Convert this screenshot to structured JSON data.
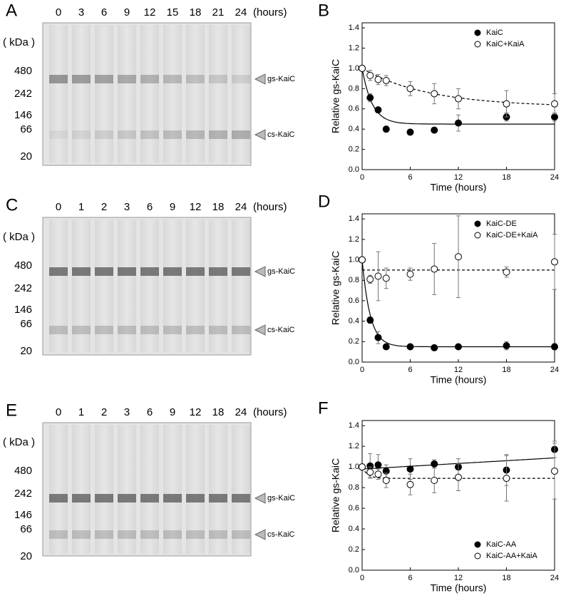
{
  "gels": [
    {
      "letter": "A",
      "lanes": [
        "0",
        "3",
        "6",
        "9",
        "12",
        "15",
        "18",
        "21",
        "24"
      ],
      "unit": "(hours)",
      "kda_label": "( kDa )",
      "markers": [
        "480",
        "242",
        "146",
        "66",
        "20"
      ],
      "band_labels": [
        "gs-KaiC",
        "cs-KaiC"
      ]
    },
    {
      "letter": "C",
      "lanes": [
        "0",
        "1",
        "2",
        "3",
        "6",
        "9",
        "12",
        "18",
        "24"
      ],
      "unit": "(hours)",
      "kda_label": "( kDa )",
      "markers": [
        "480",
        "242",
        "146",
        "66",
        "20"
      ],
      "band_labels": [
        "gs-KaiC",
        "cs-KaiC"
      ]
    },
    {
      "letter": "E",
      "lanes": [
        "0",
        "1",
        "2",
        "3",
        "6",
        "9",
        "12",
        "18",
        "24"
      ],
      "unit": "(hours)",
      "kda_label": "( kDa )",
      "markers": [
        "480",
        "242",
        "146",
        "66",
        "20"
      ],
      "band_labels": [
        "gs-KaiC",
        "cs-KaiC"
      ]
    }
  ],
  "chart_data": [
    {
      "type": "scatter",
      "letter": "B",
      "xlabel": "Time (hours)",
      "ylabel": "Relative gs-KaiC",
      "legend": "upper right",
      "xlim": [
        0,
        24
      ],
      "xticks": [
        0,
        6,
        12,
        18,
        24
      ],
      "ylim": [
        0,
        1.45
      ],
      "yticks": [
        {
          "value": 0,
          "label": "0.0"
        },
        {
          "value": 0.2,
          "label": "0.2"
        },
        {
          "value": 0.4,
          "label": "0.4"
        },
        {
          "value": 0.6,
          "label": "0.6"
        },
        {
          "value": 0.8,
          "label": "0.8"
        },
        {
          "value": 1.0,
          "label": "1.0"
        },
        {
          "value": 1.2,
          "label": "1.2"
        },
        {
          "value": 1.4,
          "label": "1.4"
        }
      ],
      "x": [
        0,
        1,
        2,
        3,
        6,
        9,
        12,
        18,
        24
      ],
      "series": [
        {
          "name": "KaiC",
          "color": "#000000",
          "values": [
            1.0,
            0.71,
            0.59,
            0.4,
            0.37,
            0.39,
            0.46,
            0.52,
            0.52
          ],
          "errors": [
            0,
            0.04,
            0.02,
            0.02,
            0.02,
            0.02,
            0.08,
            0.04,
            0.04
          ],
          "fit": {
            "start": 1.0,
            "plateau": 0.45,
            "rate": 0.8
          },
          "dash": false
        },
        {
          "name": "KaiC+KaiA",
          "color": "#ffffff",
          "values": [
            1.0,
            0.93,
            0.89,
            0.88,
            0.8,
            0.75,
            0.7,
            0.65,
            0.65
          ],
          "errors": [
            0,
            0.05,
            0.05,
            0.05,
            0.07,
            0.1,
            0.1,
            0.13,
            0.1
          ],
          "fit": {
            "start": 1.0,
            "plateau": 0.62,
            "rate": 0.12
          },
          "dash": true
        }
      ]
    },
    {
      "type": "scatter",
      "letter": "D",
      "xlabel": "Time (hours)",
      "ylabel": "Relative gs-KaiC",
      "legend": "upper right",
      "xlim": [
        0,
        24
      ],
      "xticks": [
        0,
        6,
        12,
        18,
        24
      ],
      "ylim": [
        0,
        1.45
      ],
      "yticks": [
        {
          "value": 0,
          "label": "0.0"
        },
        {
          "value": 0.2,
          "label": "0.2"
        },
        {
          "value": 0.4,
          "label": "0.4"
        },
        {
          "value": 0.6,
          "label": "0.6"
        },
        {
          "value": 0.8,
          "label": "0.8"
        },
        {
          "value": 1.0,
          "label": "1.0"
        },
        {
          "value": 1.2,
          "label": "1.2"
        },
        {
          "value": 1.4,
          "label": "1.4"
        }
      ],
      "x": [
        0,
        1,
        2,
        3,
        6,
        9,
        12,
        18,
        24
      ],
      "series": [
        {
          "name": "KaiC-DE",
          "color": "#000000",
          "values": [
            1.0,
            0.41,
            0.24,
            0.15,
            0.15,
            0.14,
            0.15,
            0.16,
            0.15
          ],
          "errors": [
            0,
            0.03,
            0.06,
            0.02,
            0.02,
            0.02,
            0.02,
            0.04,
            0.03
          ],
          "fit": {
            "start": 1.0,
            "plateau": 0.15,
            "rate": 1.0
          },
          "dash": false
        },
        {
          "name": "KaiC-DE+KaiA",
          "color": "#ffffff",
          "values": [
            1.0,
            0.81,
            0.84,
            0.82,
            0.86,
            0.91,
            1.03,
            0.88,
            0.98
          ],
          "errors": [
            0,
            0.04,
            0.24,
            0.1,
            0.06,
            0.25,
            0.4,
            0.05,
            0.27
          ],
          "fit": {
            "start": 0.9,
            "plateau": 0.9,
            "rate": 0
          },
          "dash": true
        }
      ]
    },
    {
      "type": "scatter",
      "letter": "F",
      "xlabel": "Time (hours)",
      "ylabel": "Relative gs-KaiC",
      "legend": "lower right",
      "xlim": [
        0,
        24
      ],
      "xticks": [
        0,
        6,
        12,
        18,
        24
      ],
      "ylim": [
        0,
        1.45
      ],
      "yticks": [
        {
          "value": 0,
          "label": "0.0"
        },
        {
          "value": 0.2,
          "label": "0.2"
        },
        {
          "value": 0.4,
          "label": "0.4"
        },
        {
          "value": 0.6,
          "label": "0.6"
        },
        {
          "value": 0.8,
          "label": "0.8"
        },
        {
          "value": 1.0,
          "label": "1.0"
        },
        {
          "value": 1.2,
          "label": "1.2"
        },
        {
          "value": 1.4,
          "label": "1.4"
        }
      ],
      "x": [
        0,
        1,
        2,
        3,
        6,
        9,
        12,
        18,
        24
      ],
      "series": [
        {
          "name": "KaiC-AA",
          "color": "#000000",
          "values": [
            1.0,
            1.01,
            1.02,
            0.96,
            0.98,
            1.03,
            1.0,
            0.97,
            1.17
          ],
          "errors": [
            0,
            0.12,
            0.1,
            0.06,
            0.1,
            0.04,
            0.08,
            0.15,
            0.08
          ],
          "fit": {
            "start": 0.98,
            "slope": 0.0045
          },
          "dash": false
        },
        {
          "name": "KaiC-AA+KaiA",
          "color": "#ffffff",
          "values": [
            1.0,
            0.95,
            0.93,
            0.87,
            0.83,
            0.87,
            0.9,
            0.89,
            0.96
          ],
          "errors": [
            0,
            0.05,
            0.05,
            0.07,
            0.1,
            0.12,
            0.13,
            0.22,
            0.27
          ],
          "fit": {
            "start": 1.0,
            "plateau": 0.89,
            "rate": 1.5
          },
          "dash": true
        }
      ]
    }
  ]
}
